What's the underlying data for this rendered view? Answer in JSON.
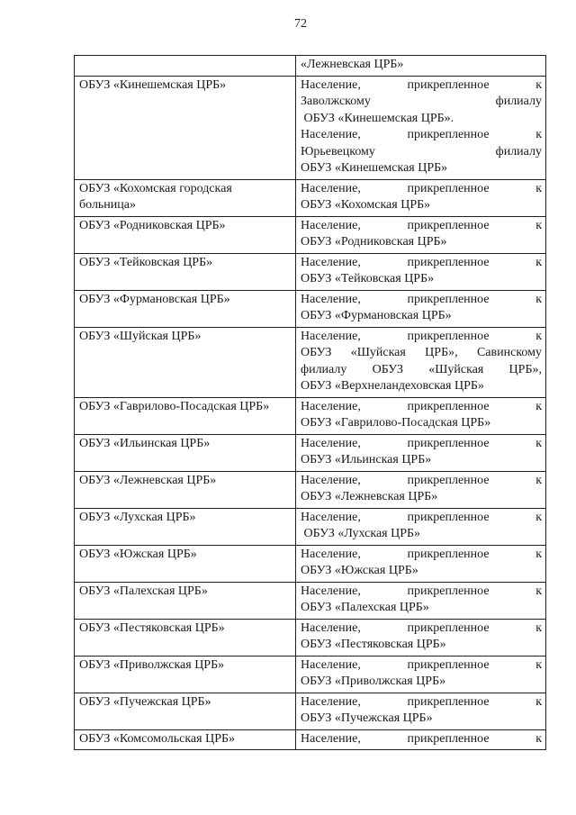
{
  "page": {
    "number": "72"
  },
  "table": {
    "description_columns": [
      "organization",
      "attached_population"
    ],
    "rows": [
      {
        "left": [],
        "right": [
          {
            "t": "«Лежневская ЦРБ»",
            "j": false
          }
        ]
      },
      {
        "left": [
          {
            "t": "ОБУЗ «Кинешемская ЦРБ»",
            "j": false
          }
        ],
        "right": [
          {
            "t": "Население, прикрепленное к",
            "j": true
          },
          {
            "t": "Заволжскому филиалу",
            "j": true
          },
          {
            "t": " ОБУЗ «Кинешемская ЦРБ».",
            "j": false
          },
          {
            "t": "Население, прикрепленное к",
            "j": true
          },
          {
            "t": "Юрьевецкому филиалу",
            "j": true
          },
          {
            "t": "ОБУЗ «Кинешемская ЦРБ»",
            "j": false
          }
        ]
      },
      {
        "left": [
          {
            "t": "ОБУЗ «Кохомская городская",
            "j": false
          },
          {
            "t": "больница»",
            "j": false
          }
        ],
        "right": [
          {
            "t": "Население, прикрепленное к",
            "j": true
          },
          {
            "t": "ОБУЗ «Кохомская ЦРБ»",
            "j": false
          }
        ]
      },
      {
        "left": [
          {
            "t": "ОБУЗ «Родниковская ЦРБ»",
            "j": false
          }
        ],
        "right": [
          {
            "t": "Население, прикрепленное к",
            "j": true
          },
          {
            "t": "ОБУЗ «Родниковская ЦРБ»",
            "j": false
          }
        ]
      },
      {
        "left": [
          {
            "t": "ОБУЗ «Тейковская ЦРБ»",
            "j": false
          }
        ],
        "right": [
          {
            "t": "Население, прикрепленное к",
            "j": true
          },
          {
            "t": "ОБУЗ «Тейковская ЦРБ»",
            "j": false
          }
        ]
      },
      {
        "left": [
          {
            "t": "ОБУЗ «Фурмановская ЦРБ»",
            "j": false
          }
        ],
        "right": [
          {
            "t": "Население, прикрепленное к",
            "j": true
          },
          {
            "t": "ОБУЗ «Фурмановская ЦРБ»",
            "j": false
          }
        ]
      },
      {
        "left": [
          {
            "t": "ОБУЗ «Шуйская ЦРБ»",
            "j": false
          }
        ],
        "right": [
          {
            "t": "Население, прикрепленное к",
            "j": true
          },
          {
            "t": "ОБУЗ «Шуйская ЦРБ», Савинскому",
            "j": true
          },
          {
            "t": "филиалу ОБУЗ «Шуйская ЦРБ»,",
            "j": true
          },
          {
            "t": "ОБУЗ «Верхнеландеховская ЦРБ»",
            "j": false
          }
        ]
      },
      {
        "left": [
          {
            "t": "ОБУЗ «Гаврилово-Посадская ЦРБ»",
            "j": false
          }
        ],
        "right": [
          {
            "t": "Население, прикрепленное к",
            "j": true
          },
          {
            "t": "ОБУЗ «Гаврилово-Посадская ЦРБ»",
            "j": false
          }
        ]
      },
      {
        "left": [
          {
            "t": "ОБУЗ «Ильинская ЦРБ»",
            "j": false
          }
        ],
        "right": [
          {
            "t": "Население, прикрепленное к",
            "j": true
          },
          {
            "t": "ОБУЗ «Ильинская ЦРБ»",
            "j": false
          }
        ]
      },
      {
        "left": [
          {
            "t": "ОБУЗ «Лежневская ЦРБ»",
            "j": false
          }
        ],
        "right": [
          {
            "t": "Население, прикрепленное к",
            "j": true
          },
          {
            "t": "ОБУЗ «Лежневская ЦРБ»",
            "j": false
          }
        ]
      },
      {
        "left": [
          {
            "t": "ОБУЗ «Лухская ЦРБ»",
            "j": false
          }
        ],
        "right": [
          {
            "t": "Население, прикрепленное к",
            "j": true
          },
          {
            "t": " ОБУЗ «Лухская ЦРБ»",
            "j": false
          }
        ]
      },
      {
        "left": [
          {
            "t": "ОБУЗ «Южская ЦРБ»",
            "j": false
          }
        ],
        "right": [
          {
            "t": "Население, прикрепленное к",
            "j": true
          },
          {
            "t": "ОБУЗ «Южская ЦРБ»",
            "j": false
          }
        ]
      },
      {
        "left": [
          {
            "t": "ОБУЗ «Палехская ЦРБ»",
            "j": false
          }
        ],
        "right": [
          {
            "t": "Население, прикрепленное к",
            "j": true
          },
          {
            "t": "ОБУЗ «Палехская ЦРБ»",
            "j": false
          }
        ]
      },
      {
        "left": [
          {
            "t": "ОБУЗ «Пестяковская ЦРБ»",
            "j": false
          }
        ],
        "right": [
          {
            "t": "Население, прикрепленное к",
            "j": true
          },
          {
            "t": "ОБУЗ «Пестяковская ЦРБ»",
            "j": false
          }
        ]
      },
      {
        "left": [
          {
            "t": "ОБУЗ «Приволжская ЦРБ»",
            "j": false
          }
        ],
        "right": [
          {
            "t": "Население, прикрепленное к",
            "j": true
          },
          {
            "t": "ОБУЗ «Приволжская ЦРБ»",
            "j": false
          }
        ]
      },
      {
        "left": [
          {
            "t": "ОБУЗ «Пучежская ЦРБ»",
            "j": false
          }
        ],
        "right": [
          {
            "t": "Население, прикрепленное к",
            "j": true
          },
          {
            "t": "ОБУЗ «Пучежская ЦРБ»",
            "j": false
          }
        ]
      },
      {
        "left": [
          {
            "t": "ОБУЗ «Комсомольская ЦРБ»",
            "j": false
          }
        ],
        "right": [
          {
            "t": "Население, прикрепленное к",
            "j": true
          }
        ]
      }
    ]
  }
}
